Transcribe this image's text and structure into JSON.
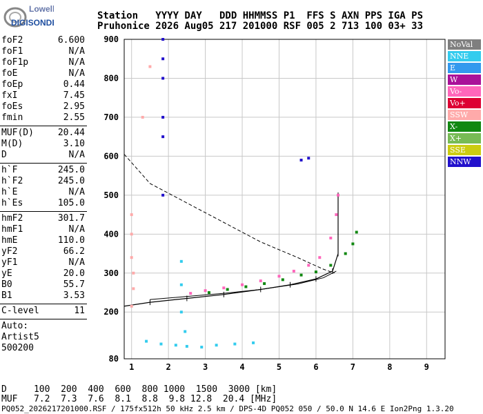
{
  "logo": {
    "line1": "Lowell",
    "line2": "DIGISONDE"
  },
  "header": {
    "line1": "Station   YYYY DAY   DDD HHMMSS P1  FFS S AXN PPS IGA PS",
    "line2": "Pruhonice 2026 Aug05 217 201000 RSF 005 2 713 100 03+ 33"
  },
  "params": {
    "group1": [
      {
        "k": "foF2",
        "v": "6.600"
      },
      {
        "k": "foF1",
        "v": "N/A"
      },
      {
        "k": "foF1p",
        "v": "N/A"
      },
      {
        "k": "foE",
        "v": "N/A"
      },
      {
        "k": "foEp",
        "v": "0.44"
      },
      {
        "k": "fxI",
        "v": "7.45"
      },
      {
        "k": "foEs",
        "v": "2.95"
      },
      {
        "k": "fmin",
        "v": "2.55"
      }
    ],
    "group2": [
      {
        "k": "MUF(D)",
        "v": "20.44"
      },
      {
        "k": "M(D)",
        "v": "3.10"
      },
      {
        "k": "D",
        "v": "N/A"
      }
    ],
    "group3": [
      {
        "k": "h`F",
        "v": "245.0"
      },
      {
        "k": "h`F2",
        "v": "245.0"
      },
      {
        "k": "h`E",
        "v": "N/A"
      },
      {
        "k": "h`Es",
        "v": "105.0"
      }
    ],
    "group4": [
      {
        "k": "hmF2",
        "v": "301.7"
      },
      {
        "k": "hmF1",
        "v": "N/A"
      },
      {
        "k": "hmE",
        "v": "110.0"
      },
      {
        "k": "yF2",
        "v": "66.2"
      },
      {
        "k": "yF1",
        "v": "N/A"
      },
      {
        "k": "yE",
        "v": "20.0"
      },
      {
        "k": "B0",
        "v": "55.7"
      },
      {
        "k": "B1",
        "v": "3.53"
      }
    ],
    "group5": [
      {
        "k": "C-level",
        "v": "11"
      }
    ]
  },
  "auto": {
    "line1": "Auto:",
    "line2": "Artist5",
    "line3": "500200"
  },
  "legend": [
    {
      "label": "NoVal",
      "color": "#7f7f7f"
    },
    {
      "label": "NNE",
      "color": "#33ccee"
    },
    {
      "label": "E",
      "color": "#3399ee"
    },
    {
      "label": "W",
      "color": "#aa1199"
    },
    {
      "label": "Vo-",
      "color": "#ff66bb"
    },
    {
      "label": "Vo+",
      "color": "#dd0033"
    },
    {
      "label": "SSW",
      "color": "#ffaaaa"
    },
    {
      "label": "X-",
      "color": "#118811"
    },
    {
      "label": "X+",
      "color": "#77bb55"
    },
    {
      "label": "SSE",
      "color": "#cccc11"
    },
    {
      "label": "NNW",
      "color": "#2211cc"
    }
  ],
  "footer": {
    "d_line": "D     100  200  400  600  800 1000  1500  3000 [km]",
    "muf_line": "MUF   7.2  7.3  7.6  8.1  8.8  9.8 12.8  20.4 [MHz]",
    "info": "PQ052_2026217201000.RSF / 175fx512h 50 kHz 2.5 km / DPS-4D PQ052 050 / 50.0 N 14.6 E Ion2Png 1.3.20"
  },
  "chart_data": {
    "type": "scatter",
    "xlim": [
      0.8,
      9.5
    ],
    "ylim": [
      80,
      900
    ],
    "x_ticks": [
      1,
      2,
      3,
      4,
      5,
      6,
      7,
      8,
      9
    ],
    "y_ticks": [
      80,
      200,
      300,
      400,
      500,
      600,
      700,
      800,
      900
    ],
    "grid": true,
    "legend_position": "right",
    "series": [
      {
        "name": "Vo-",
        "values": [
          [
            2.6,
            248
          ],
          [
            3.0,
            255
          ],
          [
            3.5,
            262
          ],
          [
            4.0,
            270
          ],
          [
            4.5,
            280
          ],
          [
            5.0,
            292
          ],
          [
            5.4,
            305
          ],
          [
            5.8,
            320
          ],
          [
            6.1,
            340
          ],
          [
            6.4,
            390
          ],
          [
            6.55,
            450
          ],
          [
            6.6,
            500
          ]
        ]
      },
      {
        "name": "X-",
        "values": [
          [
            3.1,
            250
          ],
          [
            3.6,
            258
          ],
          [
            4.1,
            265
          ],
          [
            4.6,
            273
          ],
          [
            5.1,
            283
          ],
          [
            5.6,
            295
          ],
          [
            6.0,
            303
          ],
          [
            6.4,
            320
          ],
          [
            6.8,
            350
          ],
          [
            7.0,
            375
          ],
          [
            7.1,
            405
          ]
        ]
      },
      {
        "name": "SSW",
        "values": [
          [
            1.0,
            450
          ],
          [
            1.0,
            400
          ],
          [
            1.0,
            340
          ],
          [
            1.05,
            300
          ],
          [
            1.05,
            260
          ],
          [
            1.0,
            215
          ],
          [
            1.3,
            700
          ],
          [
            1.5,
            830
          ]
        ]
      },
      {
        "name": "NNE",
        "values": [
          [
            1.4,
            125
          ],
          [
            1.8,
            118
          ],
          [
            2.2,
            115
          ],
          [
            2.5,
            112
          ],
          [
            2.9,
            110
          ],
          [
            3.3,
            115
          ],
          [
            3.8,
            118
          ],
          [
            4.3,
            121
          ],
          [
            2.35,
            330
          ],
          [
            2.35,
            270
          ],
          [
            2.35,
            200
          ],
          [
            2.45,
            150
          ]
        ]
      },
      {
        "name": "NNW",
        "values": [
          [
            1.85,
            900
          ],
          [
            1.85,
            850
          ],
          [
            1.85,
            800
          ],
          [
            1.85,
            700
          ],
          [
            1.85,
            650
          ],
          [
            1.85,
            500
          ],
          [
            5.8,
            595
          ],
          [
            5.6,
            590
          ]
        ]
      }
    ],
    "profile_label": "",
    "true_height_profile": [
      [
        0.8,
        215
      ],
      [
        1.5,
        225
      ],
      [
        2.5,
        235
      ],
      [
        3.5,
        245
      ],
      [
        4.5,
        258
      ],
      [
        5.3,
        270
      ],
      [
        6.0,
        285
      ],
      [
        6.45,
        305
      ],
      [
        6.6,
        350
      ],
      [
        6.6,
        500
      ]
    ],
    "extra_profile": [
      [
        0.8,
        605
      ],
      [
        1.5,
        530
      ],
      [
        2.5,
        480
      ],
      [
        3.5,
        430
      ],
      [
        4.5,
        380
      ],
      [
        5.5,
        340
      ],
      [
        6.2,
        310
      ],
      [
        6.5,
        300
      ]
    ],
    "virtual_height_curve": [
      [
        1.5,
        232
      ],
      [
        2.5,
        240
      ],
      [
        3.5,
        248
      ],
      [
        4.5,
        258
      ],
      [
        5.5,
        272
      ],
      [
        6.2,
        288
      ],
      [
        6.55,
        305
      ]
    ]
  }
}
